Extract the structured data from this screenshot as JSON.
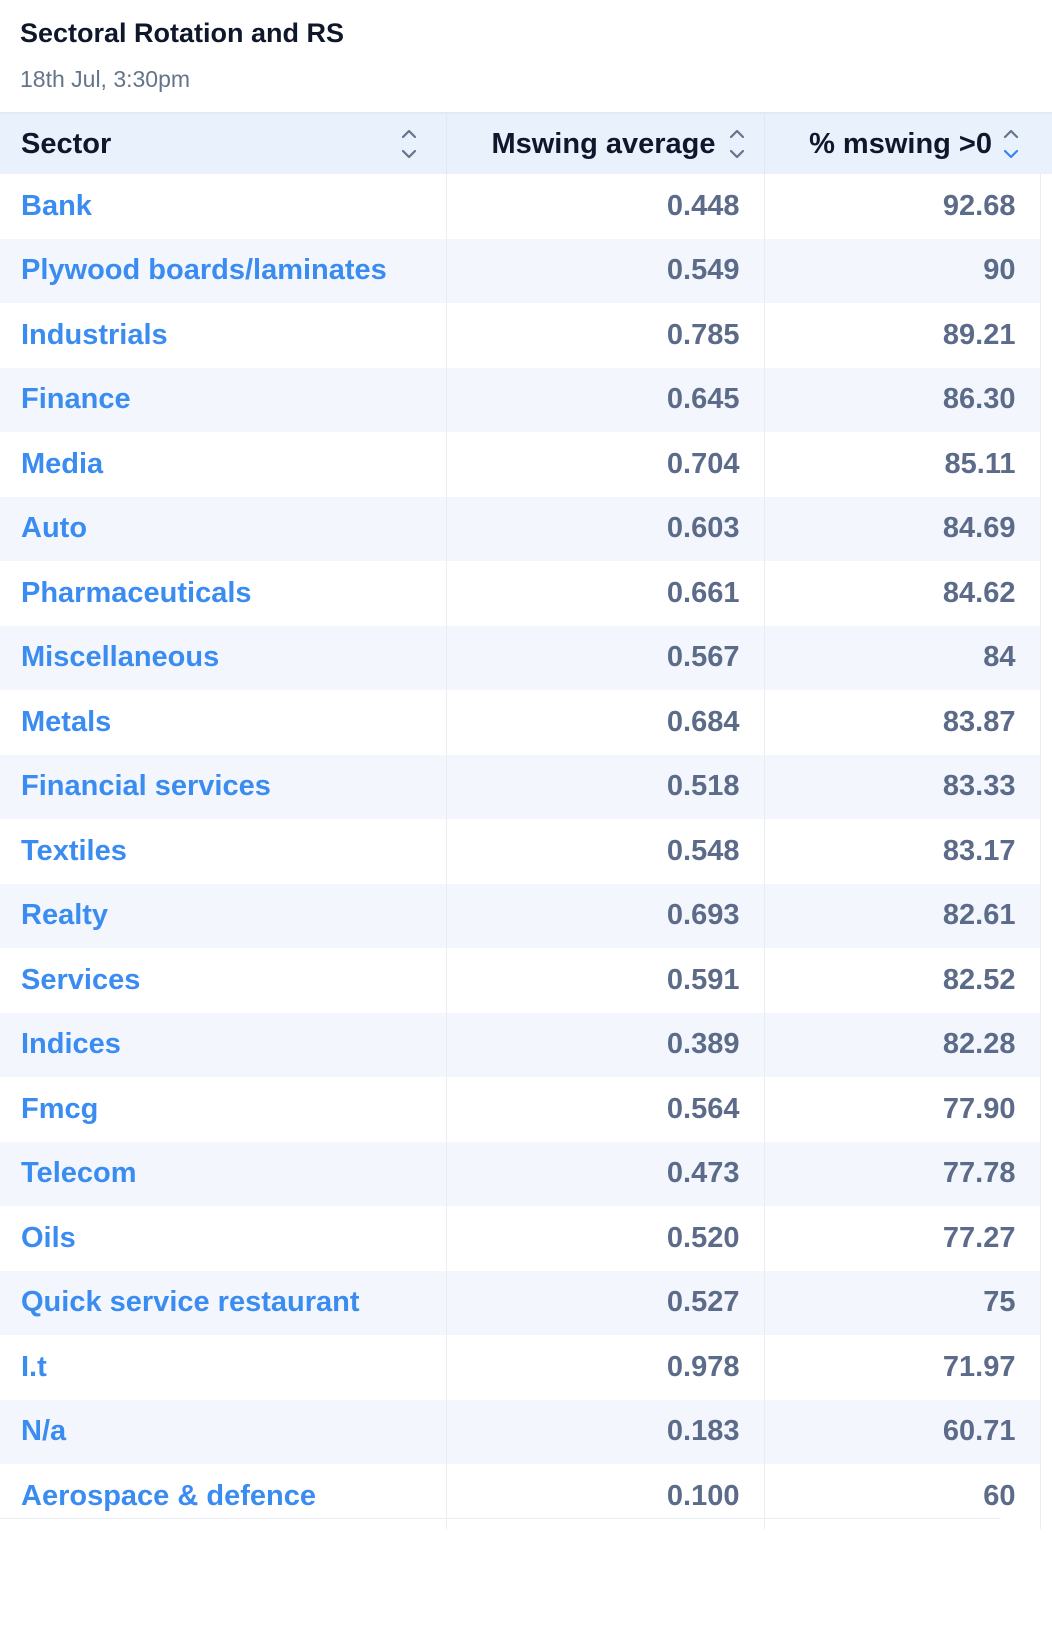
{
  "header": {
    "title": "Sectoral Rotation and RS",
    "subtitle": "18th Jul, 3:30pm"
  },
  "colors": {
    "link": "#3b8cf0",
    "value": "#5b6b89",
    "header_bg": "#e9f1fd",
    "stripe": "#f3f7fd",
    "sort_active": "#3b82f6"
  },
  "table": {
    "columns": [
      {
        "label": "Sector",
        "sort_icon": "sort-icon"
      },
      {
        "label": "Mswing average",
        "sort_icon": "sort-icon"
      },
      {
        "label": "% mswing >0",
        "sort_icon": "sort-descending-icon"
      }
    ],
    "rows": [
      {
        "sector": "Bank",
        "avg": "0.448",
        "pct": "92.68"
      },
      {
        "sector": "Plywood boards/laminates",
        "avg": "0.549",
        "pct": "90"
      },
      {
        "sector": "Industrials",
        "avg": "0.785",
        "pct": "89.21"
      },
      {
        "sector": "Finance",
        "avg": "0.645",
        "pct": "86.30"
      },
      {
        "sector": "Media",
        "avg": "0.704",
        "pct": "85.11"
      },
      {
        "sector": "Auto",
        "avg": "0.603",
        "pct": "84.69"
      },
      {
        "sector": "Pharmaceuticals",
        "avg": "0.661",
        "pct": "84.62"
      },
      {
        "sector": "Miscellaneous",
        "avg": "0.567",
        "pct": "84"
      },
      {
        "sector": "Metals",
        "avg": "0.684",
        "pct": "83.87"
      },
      {
        "sector": "Financial services",
        "avg": "0.518",
        "pct": "83.33"
      },
      {
        "sector": "Textiles",
        "avg": "0.548",
        "pct": "83.17"
      },
      {
        "sector": "Realty",
        "avg": "0.693",
        "pct": "82.61"
      },
      {
        "sector": "Services",
        "avg": "0.591",
        "pct": "82.52"
      },
      {
        "sector": "Indices",
        "avg": "0.389",
        "pct": "82.28"
      },
      {
        "sector": "Fmcg",
        "avg": "0.564",
        "pct": "77.90"
      },
      {
        "sector": "Telecom",
        "avg": "0.473",
        "pct": "77.78"
      },
      {
        "sector": "Oils",
        "avg": "0.520",
        "pct": "77.27"
      },
      {
        "sector": "Quick service restaurant",
        "avg": "0.527",
        "pct": "75"
      },
      {
        "sector": "I.t",
        "avg": "0.978",
        "pct": "71.97"
      },
      {
        "sector": "N/a",
        "avg": "0.183",
        "pct": "60.71"
      },
      {
        "sector": "Aerospace & defence",
        "avg": "0.100",
        "pct": "60"
      }
    ]
  }
}
